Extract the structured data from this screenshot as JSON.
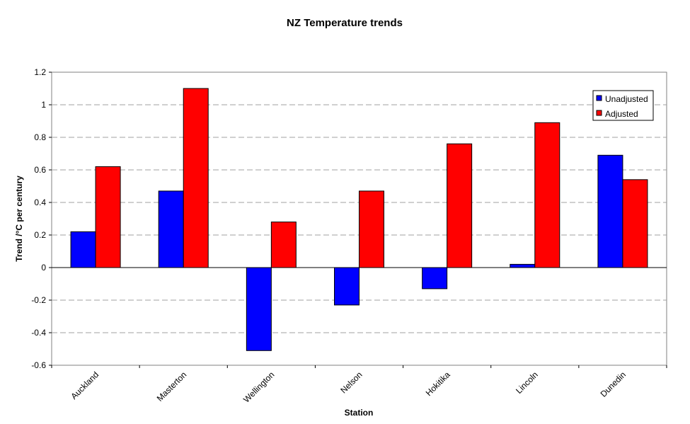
{
  "chart_data": {
    "type": "bar",
    "title": "NZ Temperature trends",
    "xlabel": "Station",
    "ylabel": "Trend /°C per century",
    "categories": [
      "Auckland",
      "Masterton",
      "Wellington",
      "Nelson",
      "Hokitika",
      "Lincoln",
      "Dunedin"
    ],
    "series": [
      {
        "name": "Unadjusted",
        "color": "#0000ff",
        "values": [
          0.22,
          0.47,
          -0.51,
          -0.23,
          -0.13,
          0.02,
          0.69
        ]
      },
      {
        "name": "Adjusted",
        "color": "#ff0000",
        "values": [
          0.62,
          1.1,
          0.28,
          0.47,
          0.76,
          0.89,
          0.54
        ]
      }
    ],
    "ylim": [
      -0.6,
      1.2
    ],
    "yticks": [
      -0.6,
      -0.4,
      -0.2,
      0,
      0.2,
      0.4,
      0.6,
      0.8,
      1,
      1.2
    ],
    "grid": true,
    "legend_position": "top-right",
    "plot_background": "#ffffff"
  }
}
